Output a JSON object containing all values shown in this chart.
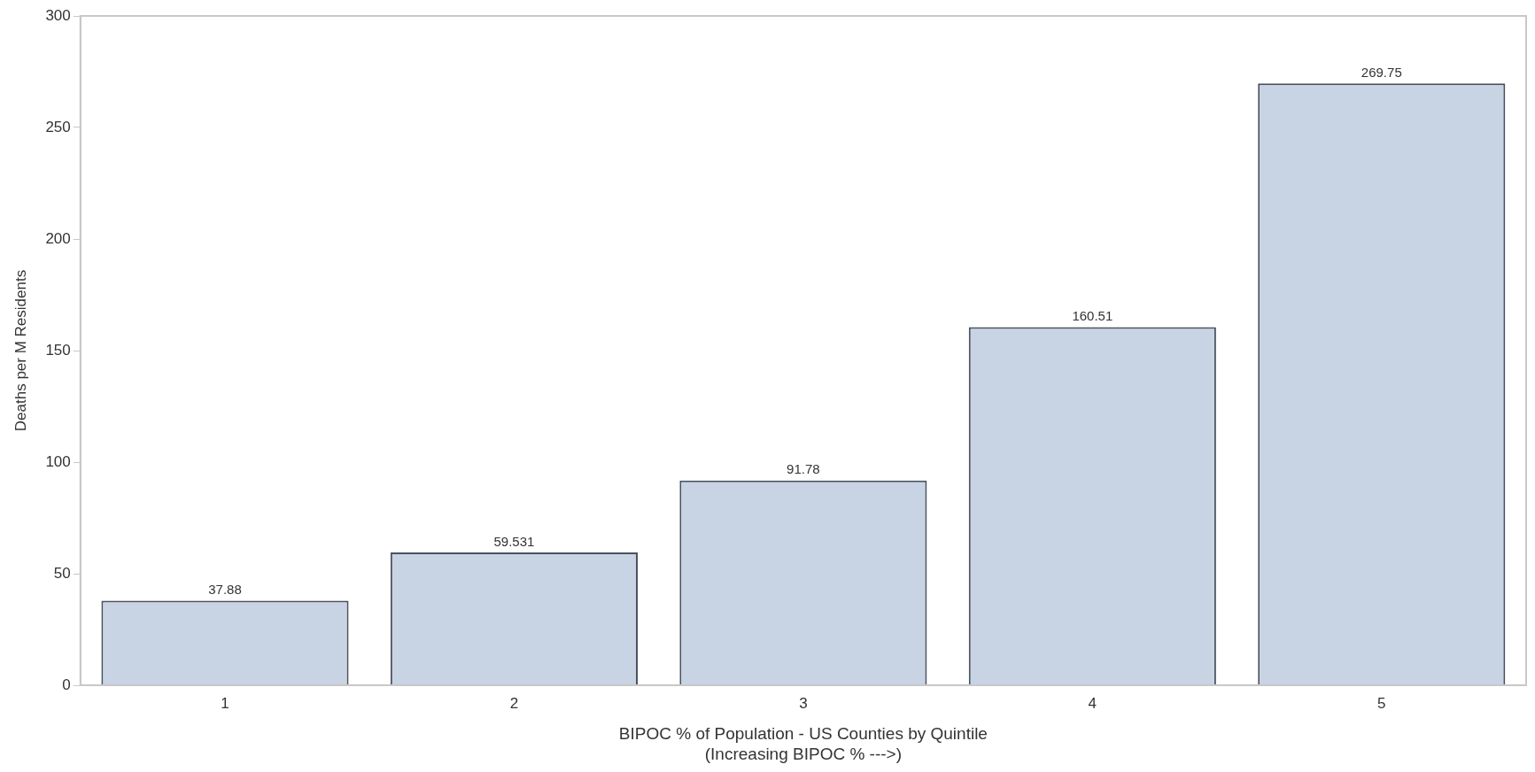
{
  "chart_data": {
    "type": "bar",
    "xlabel": "BIPOC % of Population - US Counties by Quintile\n(Increasing BIPOC % --->)",
    "ylabel": "Deaths per M Residents",
    "categories": [
      "1",
      "2",
      "3",
      "4",
      "5"
    ],
    "values": [
      37.88,
      59.531,
      91.78,
      160.51,
      269.75
    ],
    "value_labels": [
      "37.88",
      "59.531",
      "91.78",
      "160.51",
      "269.75"
    ],
    "color": "#c8d3e3",
    "ylim": [
      0,
      300
    ],
    "yticks": [
      0,
      50,
      100,
      150,
      200,
      250,
      300
    ],
    "grid": false,
    "legend": false
  }
}
